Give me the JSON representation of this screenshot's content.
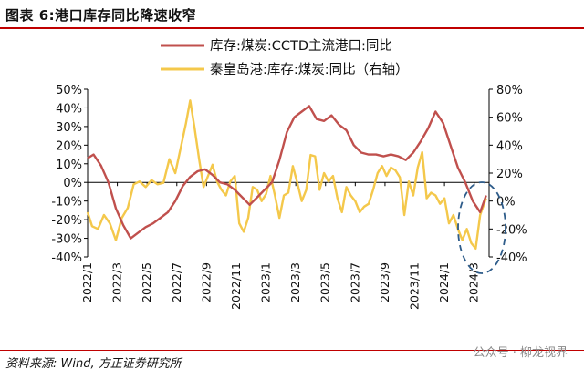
{
  "header": {
    "figure_title": "图表 6:港口库存同比降速收窄"
  },
  "footer": {
    "source": "资料来源: Wind, 方正证券研究所",
    "watermark": "公众号 · 柳龙视界"
  },
  "colors": {
    "left_series": "#c0504d",
    "right_series": "#f4c84b",
    "axis": "#000000",
    "highlight": "#2e5c8a",
    "accent_rule": "#c00000"
  },
  "chart_data": {
    "type": "line",
    "title": "",
    "xlabel": "",
    "ylabel": "",
    "left_axis": {
      "ylim": [
        -40,
        50
      ],
      "ticks": [
        50,
        40,
        30,
        20,
        10,
        0,
        -10,
        -20,
        -30,
        -40
      ],
      "tick_labels": [
        "50%",
        "40%",
        "30%",
        "20%",
        "10%",
        "0%",
        "-10%",
        "-20%",
        "-30%",
        "-40%"
      ]
    },
    "right_axis": {
      "ylim": [
        -40,
        80
      ],
      "ticks": [
        80,
        60,
        40,
        20,
        0,
        -20,
        -40
      ],
      "tick_labels": [
        "80%",
        "60%",
        "40%",
        "20%",
        "0%",
        "-20%",
        "-40%"
      ]
    },
    "x_range": [
      0,
      27
    ],
    "x_tick_positions": [
      0,
      2,
      4,
      6,
      8,
      10,
      12,
      14,
      16,
      18,
      20,
      22,
      24,
      26
    ],
    "x_tick_labels": [
      "2022/1",
      "2022/3",
      "2022/5",
      "2022/7",
      "2022/9",
      "2022/11",
      "2023/1",
      "2023/3",
      "2023/5",
      "2023/7",
      "2023/9",
      "2023/11",
      "2024/1",
      "2024/3"
    ],
    "grid": false,
    "legend_placement": "top-center",
    "series": [
      {
        "name": "库存:煤炭:CCTD主流港口:同比",
        "axis": "left",
        "x": [
          0,
          0.4,
          0.9,
          1.4,
          1.9,
          2.4,
          2.9,
          3.4,
          3.9,
          4.4,
          4.9,
          5.4,
          5.9,
          6.4,
          6.9,
          7.4,
          7.9,
          8.4,
          8.9,
          9.4,
          9.9,
          10.4,
          10.9,
          11.4,
          11.9,
          12.4,
          12.9,
          13.4,
          13.9,
          14.4,
          14.9,
          15.4,
          15.9,
          16.4,
          16.9,
          17.4,
          17.9,
          18.4,
          18.9,
          19.4,
          19.9,
          20.4,
          20.9,
          21.4,
          21.9,
          22.4,
          22.9,
          23.4,
          23.9,
          24.4,
          24.9,
          25.4,
          25.9,
          26.4,
          26.8
        ],
        "y": [
          13,
          15,
          9,
          0,
          -14,
          -23,
          -30,
          -27,
          -24,
          -22,
          -19,
          -16,
          -10,
          -2,
          3,
          6,
          7,
          4,
          0,
          -1,
          -4,
          -8,
          -12,
          -8,
          -4,
          0,
          12,
          27,
          35,
          38,
          41,
          34,
          33,
          36,
          31,
          28,
          20,
          16,
          15,
          15,
          14,
          15,
          14,
          12,
          16,
          22,
          29,
          38,
          32,
          20,
          8,
          0,
          -10,
          -16,
          -7
        ]
      },
      {
        "name": "秦皇岛港:库存:煤炭:同比（右轴）",
        "axis": "right",
        "x": [
          0,
          0.3,
          0.7,
          1.1,
          1.5,
          1.9,
          2.3,
          2.7,
          3.1,
          3.5,
          3.9,
          4.3,
          4.7,
          5.1,
          5.5,
          5.9,
          6.3,
          6.6,
          6.9,
          7.2,
          7.5,
          7.8,
          8.1,
          8.4,
          8.7,
          9.0,
          9.3,
          9.6,
          9.9,
          10.2,
          10.5,
          10.8,
          11.1,
          11.4,
          11.7,
          12.0,
          12.3,
          12.6,
          12.9,
          13.2,
          13.5,
          13.8,
          14.1,
          14.4,
          14.7,
          15.0,
          15.3,
          15.6,
          15.9,
          16.2,
          16.5,
          16.8,
          17.1,
          17.4,
          17.7,
          18.0,
          18.3,
          18.6,
          18.9,
          19.2,
          19.5,
          19.8,
          20.1,
          20.4,
          20.7,
          21.0,
          21.3,
          21.6,
          21.9,
          22.2,
          22.5,
          22.8,
          23.1,
          23.4,
          23.7,
          24.0,
          24.3,
          24.6,
          24.9,
          25.2,
          25.5,
          25.8,
          26.1,
          26.4,
          26.8
        ],
        "y": [
          -8,
          -18,
          -20,
          -10,
          -16,
          -28,
          -12,
          -5,
          12,
          14,
          10,
          15,
          12,
          13,
          30,
          20,
          40,
          55,
          72,
          52,
          30,
          10,
          18,
          26,
          14,
          8,
          4,
          14,
          18,
          -16,
          -22,
          -12,
          10,
          8,
          0,
          5,
          18,
          4,
          -12,
          4,
          6,
          25,
          13,
          0,
          8,
          33,
          32,
          8,
          20,
          14,
          18,
          2,
          -8,
          10,
          4,
          0,
          -8,
          -4,
          -2,
          8,
          20,
          25,
          18,
          24,
          22,
          17,
          -10,
          14,
          4,
          24,
          35,
          2,
          6,
          4,
          -2,
          2,
          -16,
          -10,
          -20,
          -28,
          -20,
          -30,
          -34,
          -10,
          2
        ]
      }
    ]
  }
}
